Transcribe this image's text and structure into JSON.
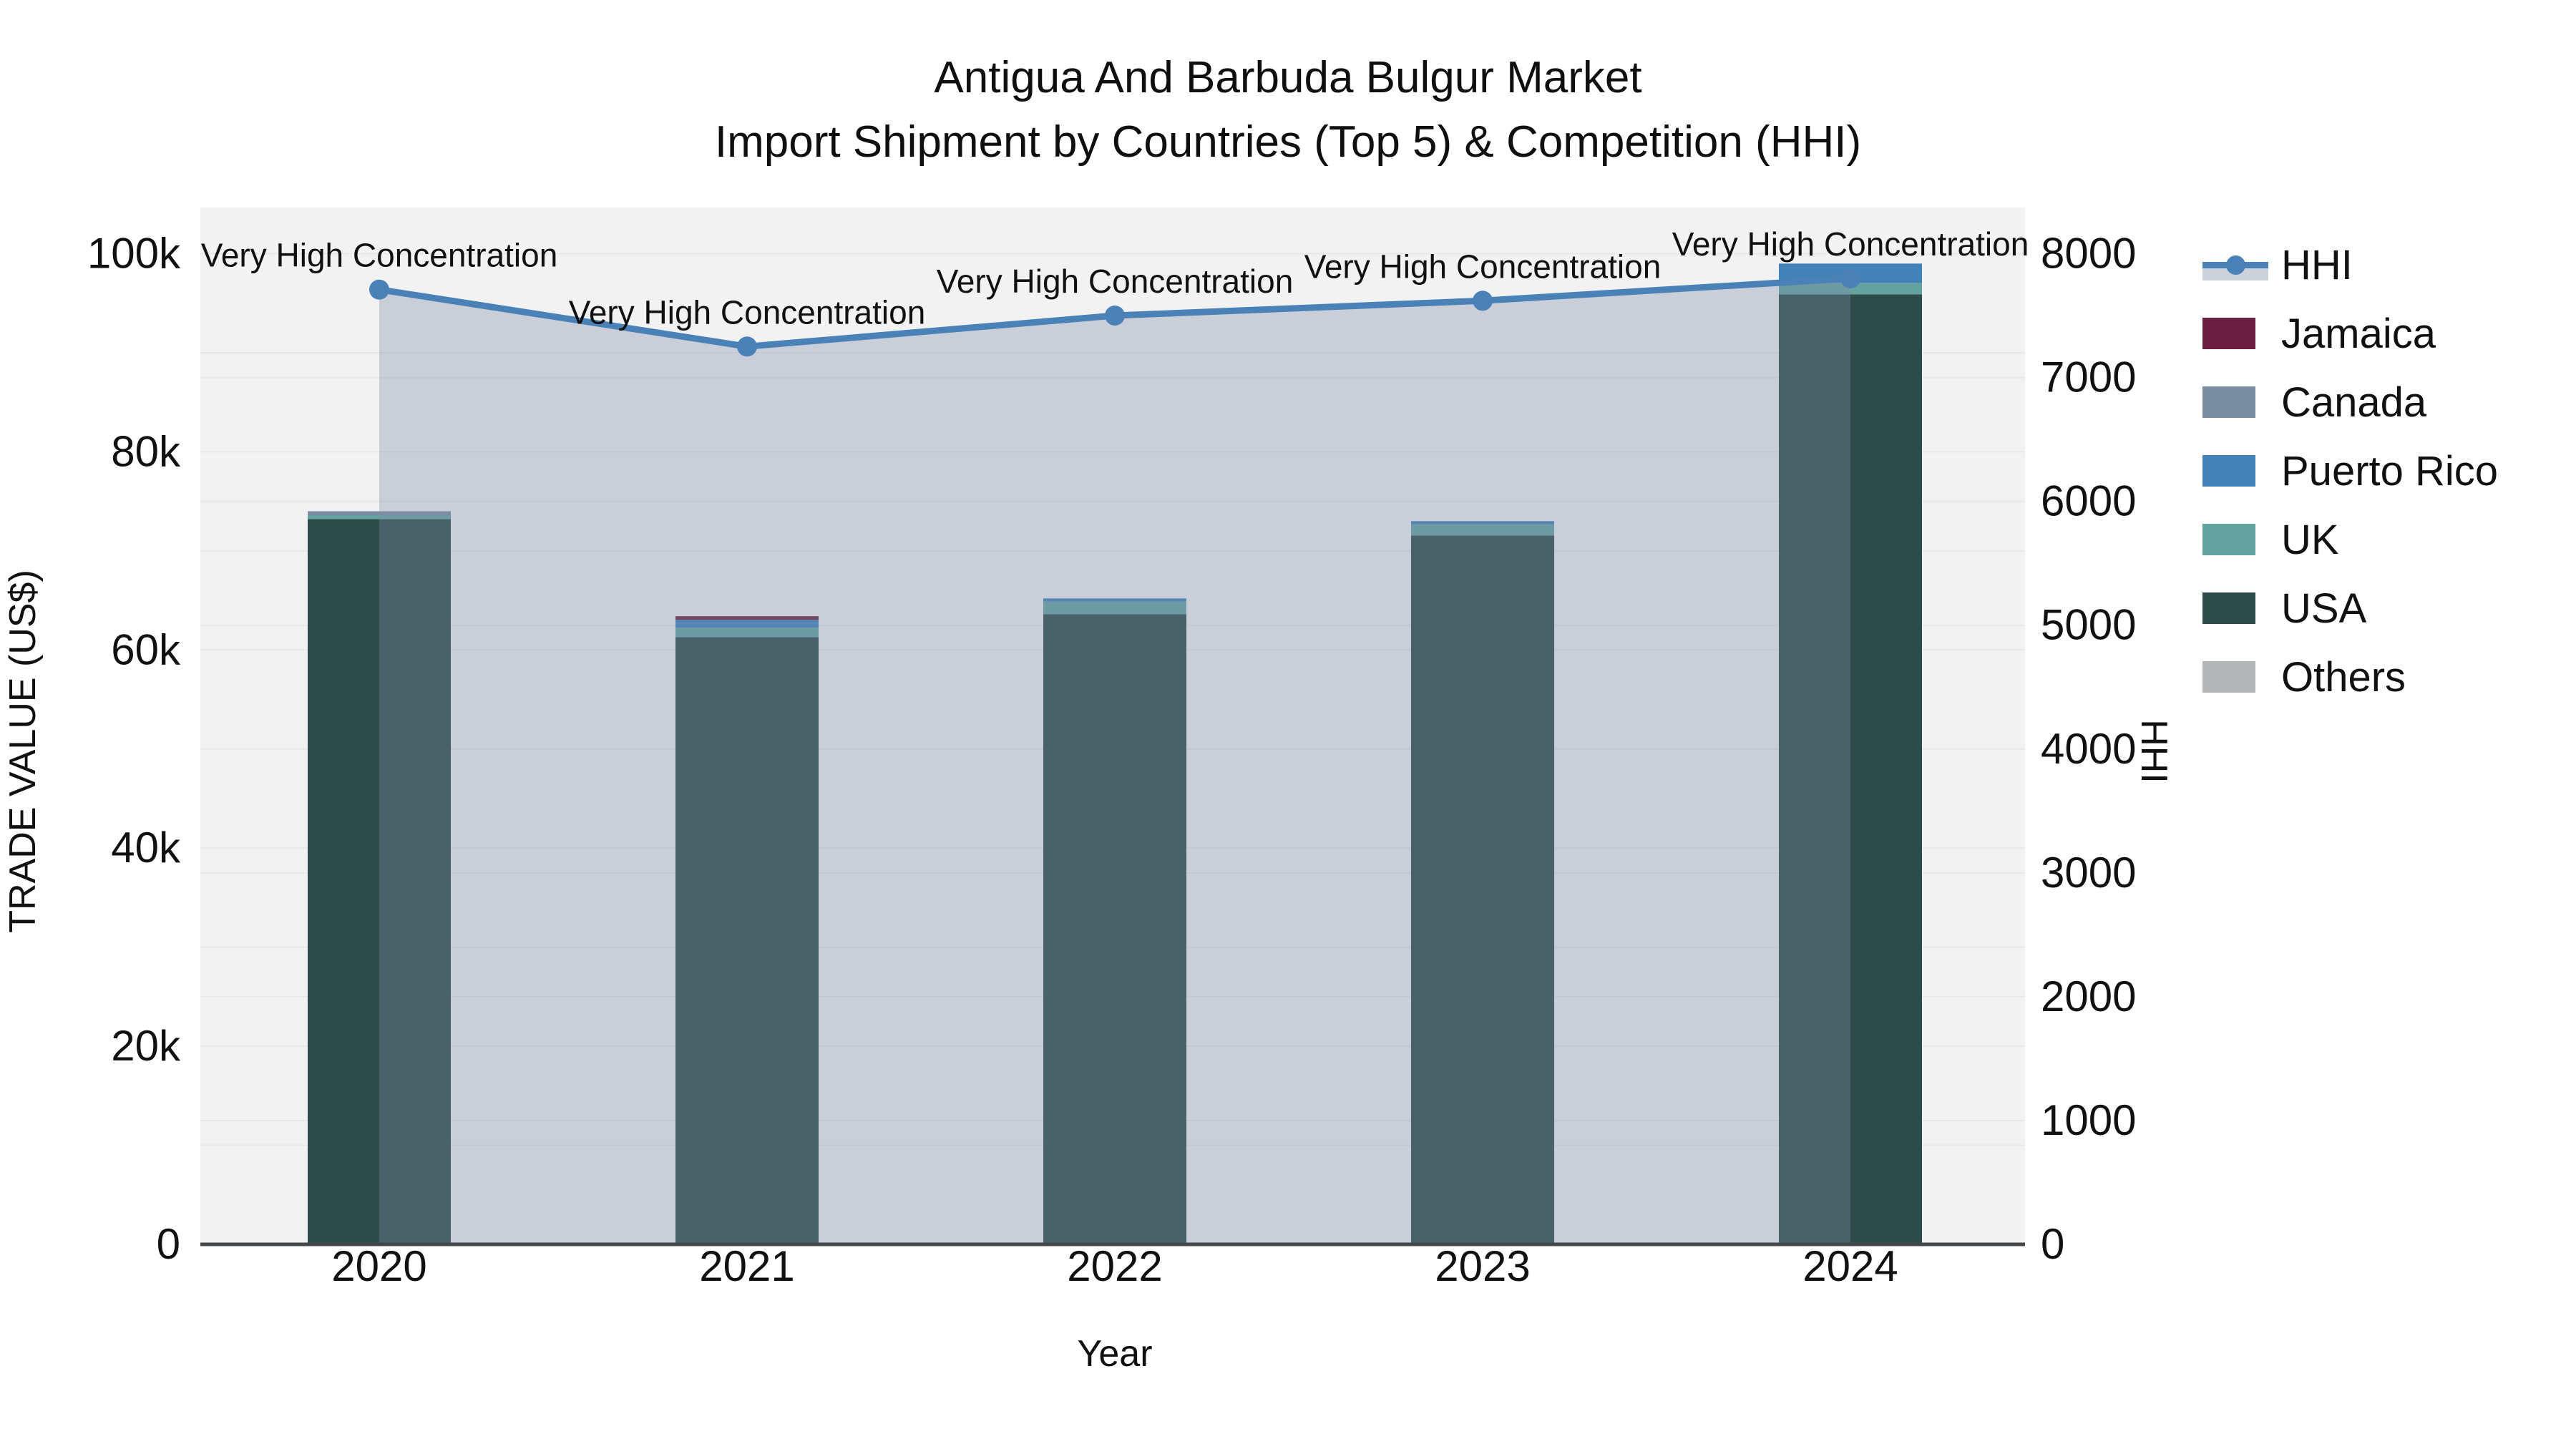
{
  "title": {
    "line1": "Antigua And Barbuda Bulgur Market",
    "line2": "Import Shipment by Countries (Top 5) & Competition (HHI)"
  },
  "axes": {
    "x": {
      "title": "Year",
      "tick_labels": [
        "2020",
        "2021",
        "2022",
        "2023",
        "2024"
      ]
    },
    "y_left": {
      "title": "TRADE VALUE (US$)",
      "tick_labels": [
        "0",
        "20k",
        "40k",
        "60k",
        "80k",
        "100k"
      ],
      "tick_values": [
        0,
        20000,
        40000,
        60000,
        80000,
        100000
      ]
    },
    "y_right": {
      "title": "HHI",
      "tick_labels": [
        "0",
        "1000",
        "2000",
        "3000",
        "4000",
        "5000",
        "6000",
        "7000",
        "8000"
      ],
      "tick_values": [
        0,
        1000,
        2000,
        3000,
        4000,
        5000,
        6000,
        7000,
        8000
      ]
    }
  },
  "chart_data": {
    "type": "bar+line",
    "categories": [
      "2020",
      "2021",
      "2022",
      "2023",
      "2024"
    ],
    "stacked_bars_bottom_to_top": [
      "USA",
      "UK",
      "Puerto Rico",
      "Canada",
      "Jamaica",
      "Others"
    ],
    "series": [
      {
        "name": "USA",
        "color": "#2d4c49",
        "values": [
          73200,
          61300,
          63600,
          71550,
          95900
        ]
      },
      {
        "name": "UK",
        "color": "#64a2a0",
        "values": [
          400,
          950,
          1300,
          1150,
          1150
        ]
      },
      {
        "name": "Puerto Rico",
        "color": "#4381b9",
        "values": [
          0,
          800,
          300,
          300,
          1950
        ]
      },
      {
        "name": "Canada",
        "color": "#7b8da0",
        "values": [
          400,
          0,
          0,
          0,
          0
        ]
      },
      {
        "name": "Jamaica",
        "color": "#6b1f3f",
        "values": [
          0,
          350,
          0,
          0,
          0
        ]
      },
      {
        "name": "Others",
        "color": "#b3b6b6",
        "values": [
          0,
          0,
          0,
          0,
          0
        ]
      }
    ],
    "bar_totals": [
      74000,
      63400,
      65200,
      73000,
      99000
    ],
    "hhi_line": {
      "name": "HHI",
      "values": [
        7710,
        7250,
        7500,
        7620,
        7800
      ],
      "line_color": "#4a82b8",
      "area_fill_color": "rgba(125,139,168,0.35)"
    },
    "annotations": [
      "Very High Concentration",
      "Very High Concentration",
      "Very High Concentration",
      "Very High Concentration",
      "Very High Concentration"
    ],
    "xlabel": "Year",
    "ylabel_left": "TRADE VALUE (US$)",
    "ylabel_right": "HHI",
    "ylim_left": [
      0,
      104600
    ],
    "ylim_right": [
      0,
      8370
    ],
    "grid": "on",
    "legend_position": "right"
  },
  "legend": {
    "items": [
      {
        "label": "HHI",
        "type": "line-sample"
      },
      {
        "label": "Jamaica",
        "type": "swatch",
        "color": "#6b1f3f"
      },
      {
        "label": "Canada",
        "type": "swatch",
        "color": "#7b8da0"
      },
      {
        "label": "Puerto Rico",
        "type": "swatch",
        "color": "#4381b9"
      },
      {
        "label": "UK",
        "type": "swatch",
        "color": "#64a2a0"
      },
      {
        "label": "USA",
        "type": "swatch",
        "color": "#2d4c49"
      },
      {
        "label": "Others",
        "type": "swatch",
        "color": "#b3b6b6"
      }
    ]
  },
  "colors": {
    "plot_background": "#f2f2f2",
    "page_background": "#ffffff",
    "gridline": "#e6e8ea",
    "axis_line": "#44474a",
    "tick_text": "#111111",
    "annotation_text": "#111111"
  }
}
